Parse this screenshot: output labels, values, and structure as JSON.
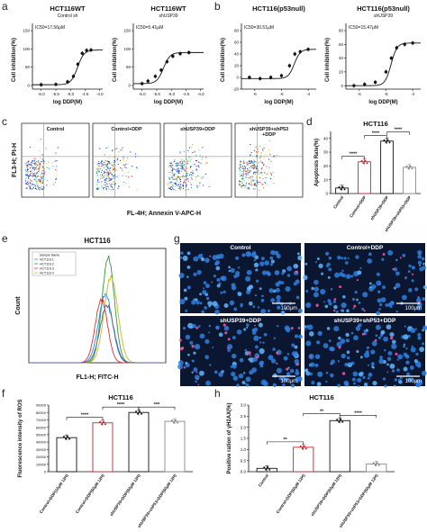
{
  "panel_labels": {
    "a": "a",
    "b": "b",
    "c": "c",
    "d": "d",
    "e": "e",
    "f": "f",
    "g": "g",
    "h": "h"
  },
  "dose_response": [
    {
      "title": "HCT116WT",
      "subtitle": "Control sh",
      "ic50": "IC50=17.56μM",
      "xlabel": "log DDP(M)",
      "ylabel": "Cell inhibition(%)",
      "yticks": [
        "150",
        "100",
        "50",
        "0"
      ],
      "xticks": [
        "-6.0",
        "-5.5",
        "-5.0",
        "-4.5",
        "-4.0"
      ],
      "midpoint": -4.76,
      "points": [
        [
          -6,
          2
        ],
        [
          -5.5,
          3
        ],
        [
          -5.1,
          10
        ],
        [
          -4.9,
          25
        ],
        [
          -4.75,
          58
        ],
        [
          -4.6,
          88
        ],
        [
          -4.45,
          96
        ],
        [
          -4.3,
          97
        ]
      ]
    },
    {
      "title": "HCT116WT",
      "subtitle": "shUSP39",
      "ic50": "IC50=5.41μM",
      "xlabel": "log DDP(M)",
      "ylabel": "Cell inhibition(%)",
      "yticks": [
        "150",
        "100",
        "50",
        "0"
      ],
      "xticks": [
        "-6.0",
        "-5.5",
        "-5.0",
        "-4.5",
        "-4.0"
      ],
      "midpoint": -5.27,
      "points": [
        [
          -6,
          5
        ],
        [
          -5.8,
          12
        ],
        [
          -5.55,
          25
        ],
        [
          -5.35,
          42
        ],
        [
          -5.15,
          65
        ],
        [
          -4.95,
          80
        ],
        [
          -4.7,
          87
        ],
        [
          -4.4,
          90
        ]
      ]
    },
    {
      "title": "HCT116(p53null)",
      "subtitle": "",
      "ic50": "IC50=30.51μM",
      "xlabel": "log DDP(M)",
      "ylabel": "Cell inhibition(%)",
      "yticks": [
        "80",
        "60",
        "40",
        "20",
        "0",
        "-20"
      ],
      "xticks": [
        "-6",
        "-5",
        "-4"
      ],
      "midpoint": -4.52,
      "points": [
        [
          -6.2,
          0
        ],
        [
          -5.8,
          -2
        ],
        [
          -5.4,
          0
        ],
        [
          -5,
          3
        ],
        [
          -4.7,
          20
        ],
        [
          -4.5,
          40
        ],
        [
          -4.3,
          44
        ],
        [
          -4,
          48
        ]
      ]
    },
    {
      "title": "HCT116(p53null)",
      "subtitle": "shUSP39",
      "ic50": "IC50=15.47μM",
      "xlabel": "log DDP(M)",
      "ylabel": "Cell inhibition(%)",
      "yticks": [
        "80",
        "60",
        "40",
        "20",
        "0"
      ],
      "xticks": [
        "-6",
        "-5",
        "-4"
      ],
      "midpoint": -4.81,
      "points": [
        [
          -6.2,
          0
        ],
        [
          -5.8,
          2
        ],
        [
          -5.4,
          5
        ],
        [
          -5,
          20
        ],
        [
          -4.8,
          40
        ],
        [
          -4.6,
          55
        ],
        [
          -4.3,
          60
        ],
        [
          -4,
          62
        ]
      ]
    }
  ],
  "flow": {
    "panels": [
      "Control",
      "Control+DDP",
      "shUSP39+DDP",
      "shUSP39+shP53\n+DDP"
    ],
    "ylabel": "FL3-H; PI-H",
    "xlabel": "FL-4H; Annexin V-APC-H"
  },
  "apoptosis": {
    "title": "HCT116",
    "ylabel": "Apoptosis Rate(%)",
    "yticks": [
      "0",
      "10",
      "20",
      "30",
      "40"
    ],
    "sig": [
      "****",
      "****",
      "****"
    ],
    "chart_data": {
      "type": "bar",
      "categories": [
        "Control",
        "Control+DDP",
        "shUSP39+DDP",
        "shUSP39+shP53+DDP"
      ],
      "values": [
        4,
        23,
        38,
        19
      ],
      "ylim": [
        0,
        45
      ],
      "colors": [
        "#111111",
        "#c0262d",
        "#111111",
        "#888888"
      ]
    }
  },
  "histogram": {
    "title": "HCT116",
    "ylabel": "Count",
    "xlabel": "FL1-H; FITC-H",
    "legend": [
      "Sample Name",
      "HCT116 1",
      "HCT116 2",
      "HCT116 3",
      "HCT116 4"
    ]
  },
  "microscopy": {
    "panels": [
      "Control",
      "Control+DDP",
      "shUSP39+DDP",
      "shUSP39+shP53+DDP"
    ],
    "scale": "100μm"
  },
  "ros": {
    "title": "HCT116",
    "ylabel": "Fluorescence intensity of ROS",
    "yticks": [
      "0",
      "10000",
      "20000",
      "30000",
      "40000",
      "50000",
      "60000",
      "70000",
      "80000",
      "90000"
    ],
    "sig": [
      "****",
      "****",
      "***"
    ],
    "chart_data": {
      "type": "bar",
      "categories": [
        "Control+DDP(10μM 12H)",
        "Control+DDP(50μM 12H)",
        "shUSP39+DDP(50μM 12H)",
        "shUSP39+shP53+DDP(50μM 12H)"
      ],
      "values": [
        46000,
        66000,
        80000,
        68000
      ],
      "ylim": [
        0,
        90000
      ],
      "colors": [
        "#111111",
        "#c0262d",
        "#111111",
        "#888888"
      ]
    }
  },
  "gamma": {
    "title": "HCT116",
    "ylabel": "Positive ration of γH2AX(%)",
    "yticks": [
      "0.0",
      "0.5",
      "1.0",
      "1.5",
      "2.0",
      "2.5",
      "3.0"
    ],
    "sig": [
      "**",
      "**",
      "****"
    ],
    "chart_data": {
      "type": "bar",
      "categories": [
        "Control",
        "Control+DDP(50μM 12H)",
        "shUSP39+DDP(50μM 12H)",
        "shUSP39+shP53+DDP(50μM 12H)"
      ],
      "values": [
        0.15,
        1.1,
        2.3,
        0.35
      ],
      "ylim": [
        0,
        3
      ],
      "colors": [
        "#111111",
        "#c0262d",
        "#111111",
        "#888888"
      ]
    }
  }
}
